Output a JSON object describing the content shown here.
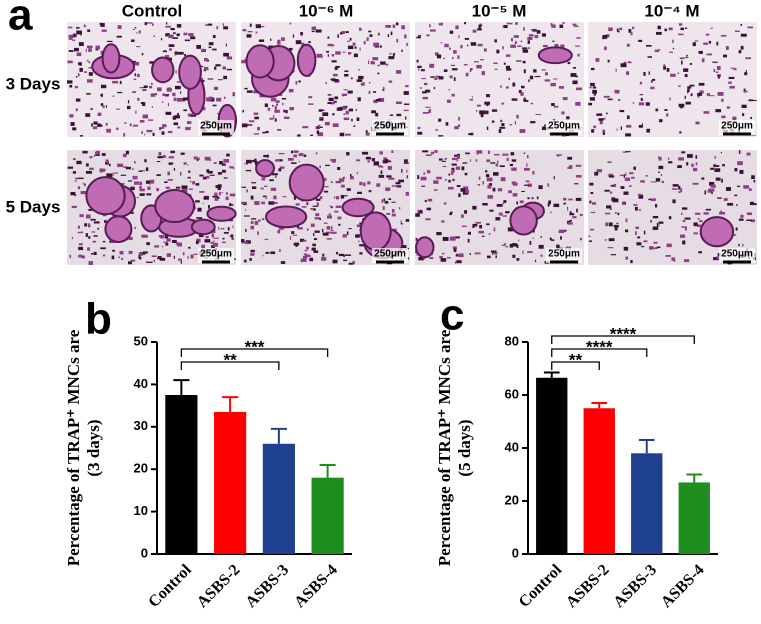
{
  "panel_labels": [
    "a",
    "b",
    "c"
  ],
  "images": {
    "columns": [
      "Control",
      "10⁻⁶ M",
      "10⁻⁵ M",
      "10⁻⁴ M"
    ],
    "rows": [
      "3 Days",
      "5 Days"
    ],
    "scale_bars": [
      [
        "250μm",
        "250μm",
        "250μm",
        "250μm"
      ],
      [
        "250μm",
        "250μm",
        "250μm",
        "250μm"
      ]
    ]
  },
  "chart_data": [
    {
      "type": "bar",
      "y_label": [
        "Percentage of TRAP⁺ MNCs are",
        "(3 days)"
      ],
      "categories": [
        "Control",
        "ASBS-2",
        "ASBS-3",
        "ASBS-4"
      ],
      "values": [
        37.5,
        33.5,
        26,
        18
      ],
      "errors": [
        3.5,
        3.5,
        3.5,
        3
      ],
      "colors": [
        "#000000",
        "#ff0000",
        "#1f3f8f",
        "#1e8c1e"
      ],
      "ylim": [
        0,
        50
      ],
      "yticks": [
        0,
        10,
        20,
        30,
        40,
        50
      ],
      "annotations": [
        {
          "text": "**",
          "from": "Control",
          "to": "ASBS-3"
        },
        {
          "text": "***",
          "from": "Control",
          "to": "ASBS-4"
        }
      ]
    },
    {
      "type": "bar",
      "y_label": [
        "Percentage of TRAP⁺ MNCs are",
        "(5 days)"
      ],
      "categories": [
        "Control",
        "ASBS-2",
        "ASBS-3",
        "ASBS-4"
      ],
      "values": [
        66.5,
        55,
        38,
        27
      ],
      "errors": [
        2,
        2,
        5,
        3
      ],
      "colors": [
        "#000000",
        "#ff0000",
        "#1f3f8f",
        "#1e8c1e"
      ],
      "ylim": [
        0,
        80
      ],
      "yticks": [
        0,
        20,
        40,
        60,
        80
      ],
      "annotations": [
        {
          "text": "**",
          "from": "Control",
          "to": "ASBS-2"
        },
        {
          "text": "****",
          "from": "Control",
          "to": "ASBS-3"
        },
        {
          "text": "****",
          "from": "Control",
          "to": "ASBS-4"
        }
      ]
    }
  ]
}
